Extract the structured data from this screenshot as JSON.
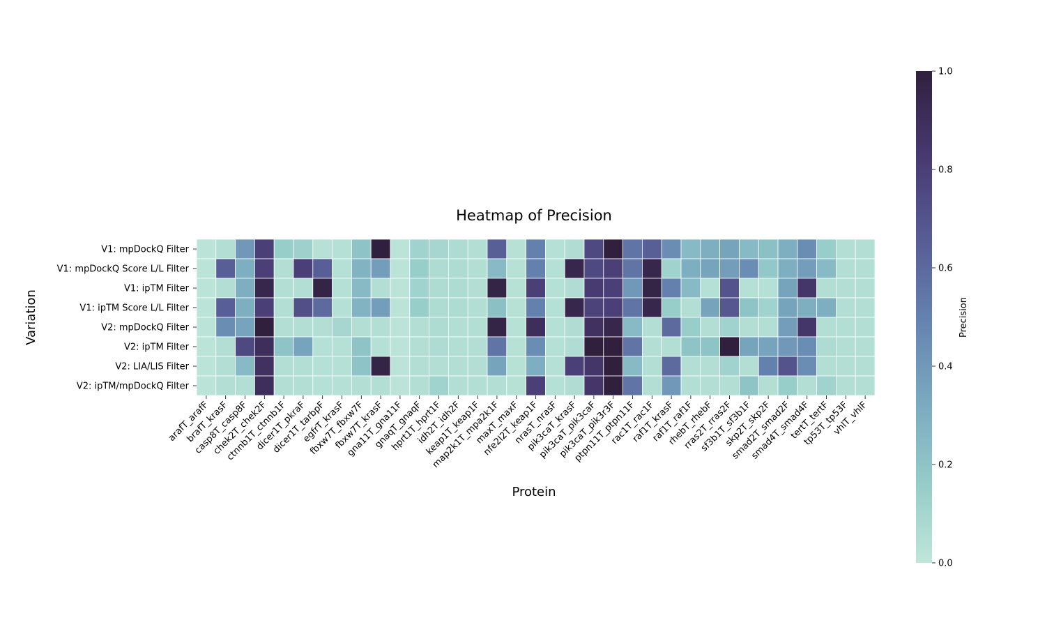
{
  "chart_data": {
    "type": "heatmap",
    "title": "Heatmap of Precision",
    "xlabel": "Protein",
    "ylabel": "Variation",
    "colorbar_label": "Precision",
    "value_range": [
      0,
      1
    ],
    "colorbar_ticks": [
      "0.0",
      "0.2",
      "0.4",
      "0.6",
      "0.8",
      "1.0"
    ],
    "colorbar_tick_values": [
      0,
      0.2,
      0.4,
      0.6,
      0.8,
      1.0
    ],
    "colormap": [
      "#c0e6d9",
      "#94cbc8",
      "#79a8bf",
      "#6481ae",
      "#575a93",
      "#47386f",
      "#30203d"
    ],
    "rows": [
      "V1: mpDockQ Filter",
      "V1: mpDockQ Score L/L Filter",
      "V1: ipTM Filter ",
      "V1: ipTM Score L/L Filter",
      "V2: mpDockQ Filter",
      "V2: ipTM Filter",
      "V2: LIA/LIS Filter",
      "V2: ipTM/mpDockQ Filter"
    ],
    "columns": [
      "arafT_arafF",
      "brafT_krasF",
      "casp8T_casp8F",
      "chek2T_chek2F",
      "ctnnb1T_ctnnb1F",
      "dicer1T_pkraF",
      "dicer1T_tarbpF",
      "egfrT_krasF",
      "fbxw7T_fbxw7F",
      "fbxw7T_krasF",
      "gna11T_gna11F",
      "gnaqT_gnaqF",
      "hprt1T_hprt1F",
      "idh2T_idh2F",
      "keap1T_keap1F",
      "map2k1T_mpa2k1F",
      "maxT_maxF",
      "nfe2l2T_keap1F",
      "nrasT_nrasF",
      "pik3caT_krasF",
      "pik3caT_pik3caF",
      "pik3caT_pik3r3F",
      "ptpn11T_ptpn11F",
      "rac1T_rac1F",
      "raf1T_krasF",
      "raf1T_raf1F",
      "rhebT_rhebF",
      "rras2T_rras2F",
      "sf3b1T_sf3b1F",
      "skp2T_skp2F",
      "smad2T_smad2F",
      "smad4T_smad4F",
      "tertT_tertF",
      "tp53T_tp53F",
      "vhlT_vhlF"
    ],
    "values": [
      [
        0.02,
        0.05,
        0.4,
        0.8,
        0.15,
        0.13,
        0.03,
        0.04,
        0.2,
        1.0,
        0.02,
        0.12,
        0.1,
        0.07,
        0.05,
        0.65,
        0.03,
        0.5,
        0.04,
        0.06,
        0.75,
        1.0,
        0.55,
        0.65,
        0.45,
        0.25,
        0.3,
        0.35,
        0.25,
        0.22,
        0.3,
        0.45,
        0.15,
        0.05,
        0.05
      ],
      [
        0.02,
        0.65,
        0.3,
        0.8,
        0.05,
        0.8,
        0.65,
        0.04,
        0.28,
        0.38,
        0.02,
        0.15,
        0.07,
        0.07,
        0.05,
        0.25,
        0.03,
        0.5,
        0.04,
        0.95,
        0.75,
        0.8,
        0.55,
        0.95,
        0.12,
        0.3,
        0.35,
        0.38,
        0.45,
        0.18,
        0.3,
        0.38,
        0.25,
        0.05,
        0.05
      ],
      [
        0.02,
        0.05,
        0.3,
        0.95,
        0.05,
        0.05,
        0.97,
        0.04,
        0.25,
        0.05,
        0.02,
        0.12,
        0.07,
        0.07,
        0.05,
        0.97,
        0.03,
        0.8,
        0.04,
        0.06,
        0.82,
        0.8,
        0.4,
        0.97,
        0.5,
        0.25,
        0.04,
        0.7,
        0.04,
        0.04,
        0.35,
        0.85,
        0.05,
        0.05,
        0.05
      ],
      [
        0.02,
        0.65,
        0.3,
        0.8,
        0.05,
        0.72,
        0.6,
        0.04,
        0.28,
        0.38,
        0.02,
        0.15,
        0.07,
        0.07,
        0.05,
        0.22,
        0.03,
        0.5,
        0.04,
        0.95,
        0.78,
        0.8,
        0.55,
        0.95,
        0.15,
        0.05,
        0.35,
        0.68,
        0.2,
        0.12,
        0.35,
        0.3,
        0.3,
        0.05,
        0.05
      ],
      [
        0.02,
        0.45,
        0.35,
        1.0,
        0.05,
        0.05,
        0.05,
        0.1,
        0.05,
        0.05,
        0.02,
        0.05,
        0.07,
        0.05,
        0.05,
        0.97,
        0.03,
        0.9,
        0.04,
        0.06,
        0.88,
        0.95,
        0.25,
        0.05,
        0.6,
        0.15,
        0.05,
        0.12,
        0.05,
        0.05,
        0.38,
        0.85,
        0.05,
        0.05,
        0.05
      ],
      [
        0.02,
        0.05,
        0.75,
        0.9,
        0.2,
        0.35,
        0.04,
        0.04,
        0.2,
        0.04,
        0.02,
        0.05,
        0.07,
        0.05,
        0.05,
        0.55,
        0.03,
        0.45,
        0.04,
        0.06,
        1.0,
        1.0,
        0.55,
        0.05,
        0.05,
        0.2,
        0.2,
        1.0,
        0.35,
        0.35,
        0.4,
        0.45,
        0.07,
        0.05,
        0.05
      ],
      [
        0.02,
        0.05,
        0.25,
        0.88,
        0.05,
        0.05,
        0.04,
        0.04,
        0.2,
        0.97,
        0.02,
        0.05,
        0.05,
        0.05,
        0.05,
        0.35,
        0.03,
        0.3,
        0.04,
        0.8,
        0.85,
        1.0,
        0.25,
        0.05,
        0.6,
        0.05,
        0.05,
        0.12,
        0.05,
        0.5,
        0.7,
        0.45,
        0.05,
        0.05,
        0.05
      ],
      [
        0.02,
        0.05,
        0.05,
        0.9,
        0.05,
        0.05,
        0.04,
        0.04,
        0.05,
        0.05,
        0.02,
        0.05,
        0.12,
        0.05,
        0.05,
        0.05,
        0.03,
        0.8,
        0.04,
        0.06,
        0.85,
        1.0,
        0.55,
        0.05,
        0.4,
        0.05,
        0.05,
        0.05,
        0.2,
        0.05,
        0.15,
        0.05,
        0.12,
        0.05,
        0.05
      ]
    ]
  }
}
